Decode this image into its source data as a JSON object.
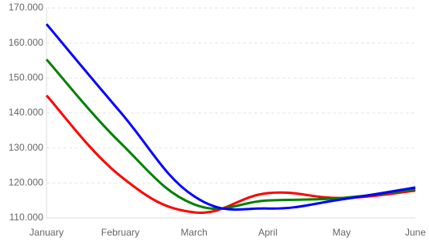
{
  "chart_data": {
    "type": "line",
    "categories": [
      "January",
      "February",
      "March",
      "April",
      "May",
      "June"
    ],
    "series": [
      {
        "name": "Red",
        "color": "#ff0000",
        "values": [
          145000,
          122000,
          111600,
          117100,
          115700,
          117800
        ]
      },
      {
        "name": "Green",
        "color": "#008000",
        "values": [
          155300,
          131500,
          113900,
          115000,
          115700,
          118200
        ]
      },
      {
        "name": "Blue",
        "color": "#0000ff",
        "values": [
          165400,
          140300,
          116200,
          112700,
          115300,
          118700
        ]
      }
    ],
    "ylim": [
      110000,
      170000
    ],
    "yticks": [
      {
        "value": 110000,
        "label": "110.000"
      },
      {
        "value": 120000,
        "label": "120.000"
      },
      {
        "value": 130000,
        "label": "130.000"
      },
      {
        "value": 140000,
        "label": "140.000"
      },
      {
        "value": 150000,
        "label": "150.000"
      },
      {
        "value": 160000,
        "label": "160.000"
      },
      {
        "value": 170000,
        "label": "170.000"
      }
    ],
    "grid": true
  }
}
